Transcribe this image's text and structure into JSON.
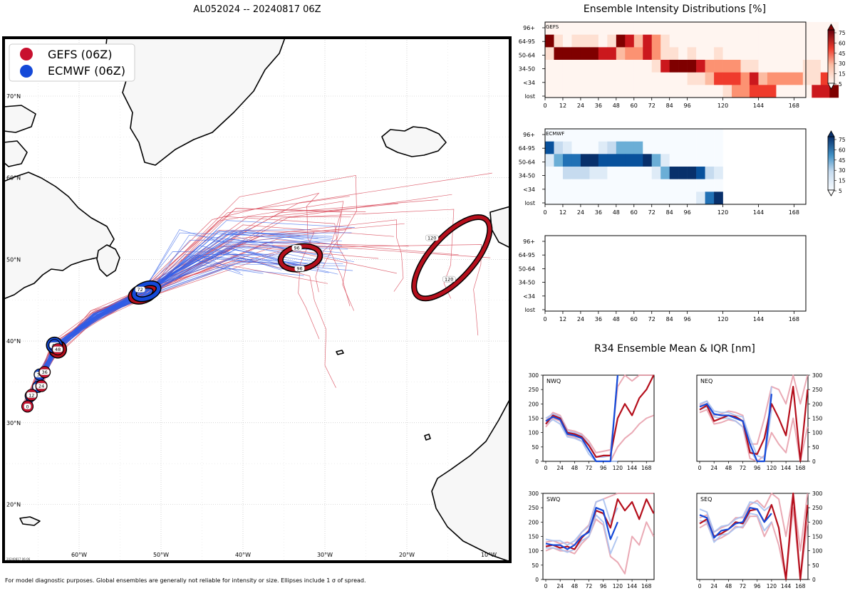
{
  "header": {
    "storm_title": "AL052024 -- 20240817 06Z",
    "intensity_title": "Ensemble Intensity Distributions [%]",
    "r34_title": "R34 Ensemble Mean & IQR [nm]"
  },
  "footer": {
    "note": "For model diagnostic purposes. Global ensembles are generally not reliable for intensity or size. Ellipses include 1 σ of spread.",
    "stamp": "20240817 06:06"
  },
  "map": {
    "legend": [
      {
        "label": "GEFS (06Z)",
        "color": "#c8102e"
      },
      {
        "label": "ECMWF (06Z)",
        "color": "#1449d8"
      }
    ],
    "lon_labels": [
      "60°W",
      "50°W",
      "40°W",
      "30°W",
      "20°W",
      "10°W"
    ],
    "lat_labels": [
      "70°N",
      "60°N",
      "50°N",
      "40°N",
      "30°N",
      "20°N"
    ],
    "track_markers": {
      "gefs": [
        {
          "hour": "0",
          "lon": -66.3,
          "lat": 32.0
        },
        {
          "hour": "12",
          "lon": -65.8,
          "lat": 33.4
        },
        {
          "hour": "24",
          "lon": -64.6,
          "lat": 34.5
        },
        {
          "hour": "36",
          "lon": -64.2,
          "lat": 36.2
        },
        {
          "hour": "48",
          "lon": -62.6,
          "lat": 39.0
        },
        {
          "hour": "72",
          "lon": -52.2,
          "lat": 45.8
        },
        {
          "hour": "96",
          "lon": -33.0,
          "lat": 50.2
        },
        {
          "hour": "120",
          "lon": -14.5,
          "lat": 50.2
        }
      ],
      "ecmwf": [
        {
          "hour": "0",
          "lon": -66.3,
          "lat": 32.0
        },
        {
          "hour": "12",
          "lon": -65.9,
          "lat": 33.3
        },
        {
          "hour": "24",
          "lon": -65.0,
          "lat": 34.4
        },
        {
          "hour": "36",
          "lon": -64.8,
          "lat": 35.9
        },
        {
          "hour": "48",
          "lon": -63.0,
          "lat": 39.5
        },
        {
          "hour": "72",
          "lon": -51.8,
          "lat": 46.1
        }
      ]
    }
  },
  "intensity": {
    "y_labels": [
      "96+",
      "64-95",
      "50-64",
      "34-50",
      "<34",
      "lost"
    ],
    "x_ticks": [
      "0",
      "12",
      "24",
      "36",
      "48",
      "60",
      "72",
      "84",
      "96",
      "120",
      "144",
      "168"
    ],
    "colorbar_ticks": [
      "75",
      "60",
      "45",
      "30",
      "15",
      "5"
    ],
    "panels": [
      {
        "name": "GEFS",
        "model_label": "GEFS",
        "palette": "reds",
        "rows": [
          [
            0,
            0,
            0,
            0,
            0,
            0,
            0,
            0,
            0,
            0,
            0,
            0,
            0,
            0,
            0,
            0,
            0,
            0,
            0,
            0,
            0,
            0,
            0,
            0,
            0,
            0,
            0,
            0,
            0,
            0,
            0,
            0,
            0
          ],
          [
            80,
            10,
            0,
            10,
            10,
            10,
            0,
            10,
            80,
            65,
            25,
            65,
            40,
            10,
            0,
            0,
            0,
            0,
            0,
            0,
            0,
            0,
            0,
            0,
            0,
            0,
            0,
            0,
            0,
            0,
            0,
            0,
            0
          ],
          [
            10,
            80,
            80,
            80,
            80,
            80,
            65,
            65,
            20,
            30,
            30,
            65,
            40,
            10,
            10,
            0,
            10,
            0,
            0,
            10,
            0,
            0,
            0,
            0,
            0,
            0,
            0,
            0,
            0,
            0,
            0,
            0,
            0
          ],
          [
            0,
            0,
            0,
            0,
            0,
            0,
            0,
            0,
            0,
            0,
            0,
            0,
            10,
            60,
            75,
            75,
            75,
            70,
            40,
            40,
            30,
            30,
            10,
            10,
            0,
            0,
            0,
            0,
            0,
            10,
            10,
            0,
            0
          ],
          [
            0,
            0,
            0,
            0,
            0,
            0,
            0,
            0,
            0,
            0,
            0,
            0,
            0,
            0,
            0,
            0,
            10,
            10,
            20,
            50,
            50,
            50,
            30,
            60,
            20,
            40,
            40,
            40,
            40,
            10,
            10,
            45,
            0
          ],
          [
            0,
            0,
            0,
            0,
            0,
            0,
            0,
            0,
            0,
            0,
            0,
            0,
            0,
            0,
            0,
            0,
            0,
            0,
            0,
            0,
            10,
            30,
            30,
            45,
            55,
            55,
            0,
            0,
            0,
            0,
            60,
            60,
            80
          ]
        ]
      },
      {
        "name": "ECMWF",
        "model_label": "ECMWF",
        "palette": "blues",
        "rows": [
          [
            0,
            0,
            0,
            0,
            0,
            0,
            0,
            0,
            0,
            0,
            0,
            0,
            0,
            0,
            0,
            0,
            0,
            0,
            0,
            0
          ],
          [
            60,
            15,
            10,
            0,
            0,
            0,
            10,
            15,
            30,
            30,
            30,
            0,
            0,
            0,
            0,
            0,
            0,
            0,
            0,
            0
          ],
          [
            5,
            30,
            55,
            55,
            75,
            75,
            60,
            60,
            60,
            60,
            60,
            75,
            40,
            10,
            0,
            0,
            0,
            0,
            0,
            0
          ],
          [
            0,
            0,
            15,
            15,
            15,
            10,
            10,
            0,
            0,
            0,
            0,
            0,
            10,
            40,
            75,
            75,
            75,
            60,
            25,
            10
          ],
          [
            0,
            0,
            0,
            0,
            0,
            0,
            0,
            0,
            0,
            0,
            0,
            0,
            0,
            0,
            0,
            0,
            0,
            0,
            0,
            0
          ],
          [
            0,
            0,
            0,
            0,
            0,
            0,
            0,
            0,
            0,
            0,
            0,
            0,
            0,
            0,
            0,
            0,
            0,
            10,
            45,
            75
          ]
        ]
      },
      {
        "name": "blank",
        "model_label": "",
        "palette": "none",
        "rows": []
      }
    ]
  },
  "r34": {
    "x_ticks": [
      "0",
      "24",
      "48",
      "72",
      "96",
      "120",
      "144",
      "168"
    ],
    "y_ticks": [
      "0",
      "50",
      "100",
      "150",
      "200",
      "250",
      "300"
    ],
    "panels": [
      {
        "label": "NWQ",
        "gefs_mean": [
          130,
          160,
          150,
          100,
          95,
          85,
          55,
          15,
          20,
          20,
          150,
          200,
          160,
          220,
          250,
          300
        ],
        "ecmwf_mean": [
          140,
          155,
          145,
          95,
          90,
          80,
          40,
          0,
          0,
          0,
          300
        ],
        "gefs_iqr_low": [
          120,
          150,
          140,
          90,
          85,
          70,
          40,
          0,
          0,
          0,
          50,
          80,
          100,
          130,
          150,
          160
        ],
        "gefs_iqr_high": [
          140,
          170,
          160,
          110,
          105,
          95,
          70,
          30,
          35,
          40,
          260,
          300,
          280,
          300,
          300,
          300
        ],
        "ecmwf_iqr_low": [
          130,
          145,
          130,
          85,
          80,
          70,
          25,
          0,
          0,
          0,
          0
        ],
        "ecmwf_iqr_high": [
          150,
          165,
          155,
          105,
          100,
          90,
          60,
          15,
          15,
          20,
          300
        ]
      },
      {
        "label": "NEQ",
        "gefs_mean": [
          180,
          195,
          140,
          150,
          160,
          155,
          140,
          30,
          25,
          80,
          200,
          150,
          90,
          260,
          0,
          250
        ],
        "ecmwf_mean": [
          190,
          200,
          165,
          160,
          160,
          150,
          140,
          60,
          0,
          0,
          235
        ],
        "gefs_iqr_low": [
          170,
          180,
          130,
          135,
          145,
          140,
          120,
          10,
          0,
          20,
          100,
          60,
          30,
          150,
          0,
          120
        ],
        "gefs_iqr_high": [
          195,
          210,
          160,
          165,
          175,
          170,
          160,
          60,
          60,
          150,
          260,
          250,
          200,
          300,
          200,
          300
        ],
        "ecmwf_iqr_low": [
          180,
          190,
          155,
          150,
          150,
          140,
          120,
          40,
          0,
          0,
          180
        ],
        "ecmwf_iqr_high": [
          200,
          210,
          175,
          170,
          170,
          160,
          155,
          80,
          20,
          10,
          260
        ]
      },
      {
        "label": "SWQ",
        "gefs_mean": [
          115,
          120,
          110,
          115,
          105,
          145,
          170,
          240,
          230,
          180,
          280,
          240,
          270,
          210,
          280,
          230
        ],
        "ecmwf_mean": [
          125,
          120,
          120,
          105,
          120,
          150,
          165,
          250,
          240,
          140,
          200
        ],
        "gefs_iqr_low": [
          100,
          110,
          100,
          100,
          90,
          125,
          150,
          210,
          190,
          80,
          60,
          20,
          150,
          120,
          200,
          150
        ],
        "gefs_iqr_high": [
          130,
          135,
          125,
          130,
          120,
          165,
          190,
          270,
          280,
          290,
          300,
          300,
          300,
          300,
          300,
          300
        ],
        "ecmwf_iqr_low": [
          110,
          110,
          105,
          95,
          105,
          135,
          150,
          225,
          200,
          90,
          150
        ],
        "ecmwf_iqr_high": [
          140,
          135,
          135,
          120,
          135,
          165,
          185,
          270,
          280,
          200,
          250
        ]
      },
      {
        "label": "SEQ",
        "gefs_mean": [
          195,
          210,
          150,
          160,
          175,
          200,
          195,
          240,
          245,
          200,
          260,
          180,
          0,
          300,
          0,
          260
        ],
        "ecmwf_mean": [
          225,
          215,
          145,
          170,
          175,
          195,
          200,
          250,
          245,
          200,
          230
        ],
        "gefs_iqr_low": [
          180,
          195,
          135,
          145,
          160,
          185,
          180,
          220,
          220,
          150,
          200,
          120,
          0,
          250,
          0,
          200
        ],
        "gefs_iqr_high": [
          215,
          225,
          165,
          180,
          190,
          215,
          215,
          260,
          275,
          250,
          300,
          280,
          150,
          300,
          100,
          300
        ],
        "ecmwf_iqr_low": [
          205,
          200,
          130,
          155,
          160,
          180,
          185,
          230,
          225,
          170,
          200
        ],
        "ecmwf_iqr_high": [
          245,
          235,
          165,
          185,
          190,
          210,
          220,
          270,
          265,
          240,
          260
        ]
      }
    ]
  }
}
